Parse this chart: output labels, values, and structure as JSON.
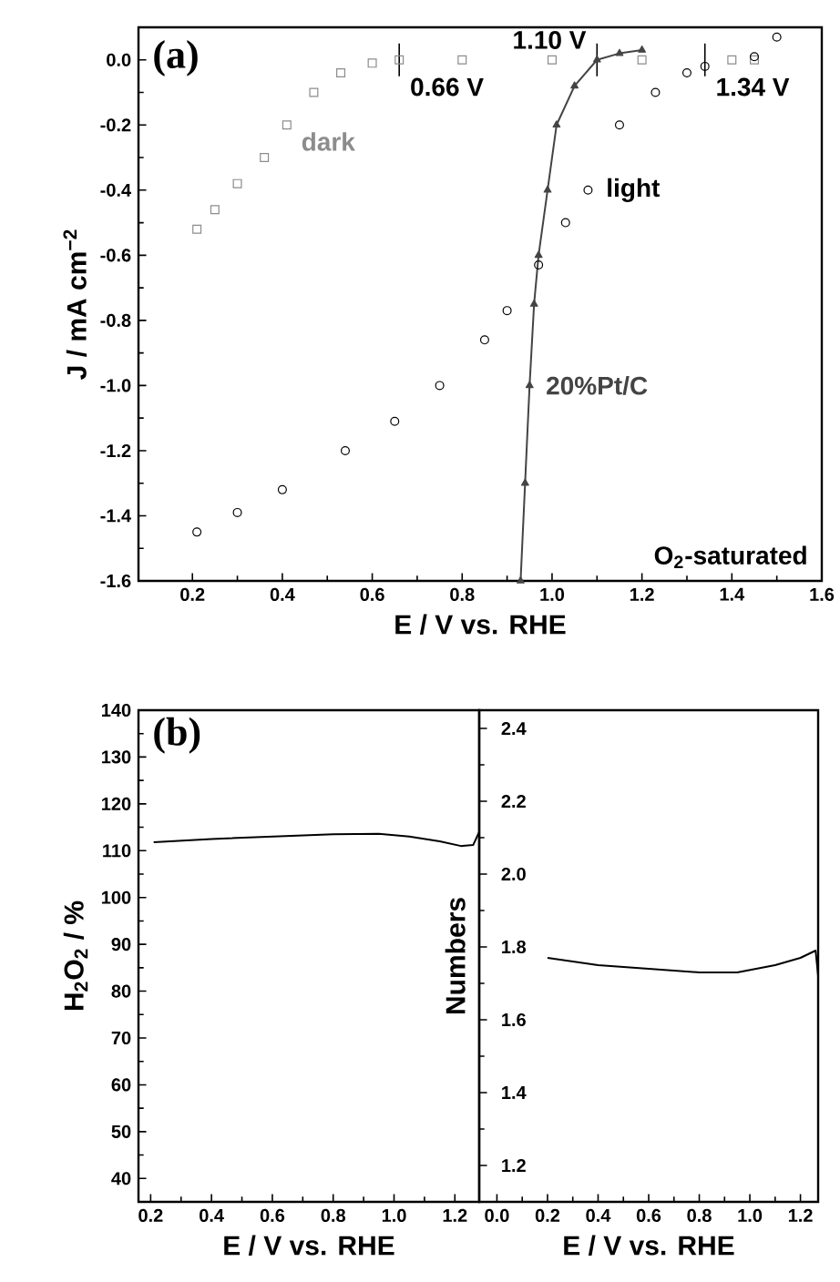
{
  "chart_data": [
    {
      "type": "line",
      "xlabel": "E / V vs. RHE",
      "ylabel": "J / mA cm$^{−2}$",
      "xlim": [
        0.08,
        1.6
      ],
      "ylim": [
        -1.6,
        0.1
      ],
      "xticks": [
        {
          "value": 0.2,
          "label": "0.2"
        },
        {
          "value": 0.4,
          "label": "0.4"
        },
        {
          "value": 0.6,
          "label": "0.6"
        },
        {
          "value": 0.8,
          "label": "0.8"
        },
        {
          "value": 1.0,
          "label": "1.0"
        },
        {
          "value": 1.2,
          "label": "1.2"
        },
        {
          "value": 1.4,
          "label": "1.4"
        },
        {
          "value": 1.6,
          "label": "1.6"
        }
      ],
      "yticks": [
        {
          "value": -1.6,
          "label": "-1.6"
        },
        {
          "value": -1.4,
          "label": "-1.4"
        },
        {
          "value": -1.2,
          "label": "-1.2"
        },
        {
          "value": -1.0,
          "label": "-1.0"
        },
        {
          "value": -0.8,
          "label": "-0.8"
        },
        {
          "value": -0.6,
          "label": "-0.6"
        },
        {
          "value": -0.4,
          "label": "-0.4"
        },
        {
          "value": -0.2,
          "label": "-0.2"
        },
        {
          "value": 0.0,
          "label": "0.0"
        }
      ],
      "series": [
        {
          "name": "dark",
          "type": "scatter",
          "marker": "square",
          "color": "#8c8c8c",
          "x": [
            0.21,
            0.25,
            0.3,
            0.36,
            0.41,
            0.47,
            0.53,
            0.6,
            0.66,
            0.8,
            1.0,
            1.2,
            1.4,
            1.45
          ],
          "values": [
            -0.52,
            -0.46,
            -0.38,
            -0.3,
            -0.2,
            -0.1,
            -0.04,
            -0.01,
            0.0,
            0.0,
            0.0,
            0.0,
            0.0,
            0.0
          ]
        },
        {
          "name": "light",
          "type": "scatter",
          "marker": "circle",
          "color": "#000000",
          "x": [
            0.21,
            0.3,
            0.4,
            0.54,
            0.65,
            0.75,
            0.85,
            0.9,
            0.97,
            1.03,
            1.08,
            1.15,
            1.23,
            1.3,
            1.34,
            1.45,
            1.5
          ],
          "values": [
            -1.45,
            -1.39,
            -1.32,
            -1.2,
            -1.11,
            -1.0,
            -0.86,
            -0.77,
            -0.63,
            -0.5,
            -0.4,
            -0.2,
            -0.1,
            -0.04,
            -0.02,
            0.01,
            0.07
          ]
        },
        {
          "name": "20%Pt/C",
          "type": "line",
          "marker": "triangle",
          "color": "#444444",
          "x": [
            0.93,
            0.94,
            0.95,
            0.96,
            0.97,
            0.99,
            1.01,
            1.05,
            1.1,
            1.15,
            1.2
          ],
          "values": [
            -1.6,
            -1.3,
            -1.0,
            -0.75,
            -0.6,
            -0.4,
            -0.2,
            -0.08,
            0.0,
            0.02,
            0.03
          ]
        }
      ],
      "annotations": [
        "(a)",
        {
          "text": "0.66 V",
          "x": 0.66,
          "y": 0.0
        },
        {
          "text": "1.10 V",
          "x": 1.1,
          "y": 0.0
        },
        {
          "text": "1.34 V",
          "x": 1.34,
          "y": 0.0
        },
        "O$_{2}$-saturated"
      ]
    },
    {
      "type": "line",
      "xlabel": "E / V vs. RHE",
      "ylabel": "H$_{2}$O$_{2}$ / %",
      "xlim": [
        0.16,
        1.28
      ],
      "ylim": [
        35,
        140
      ],
      "xticks": [
        {
          "value": 0.2,
          "label": "0.2"
        },
        {
          "value": 0.4,
          "label": "0.4"
        },
        {
          "value": 0.6,
          "label": "0.6"
        },
        {
          "value": 0.8,
          "label": "0.8"
        },
        {
          "value": 1.0,
          "label": "1.0"
        },
        {
          "value": 1.2,
          "label": "1.2"
        }
      ],
      "yticks": [
        40,
        50,
        60,
        70,
        80,
        90,
        100,
        110,
        120,
        130,
        140
      ],
      "series": [
        {
          "color": "#000000",
          "x": [
            0.21,
            0.4,
            0.6,
            0.8,
            0.95,
            1.05,
            1.15,
            1.22,
            1.26,
            1.28
          ],
          "values": [
            111.8,
            112.5,
            113.0,
            113.5,
            113.6,
            113.0,
            112.0,
            111.0,
            111.2,
            114.0
          ]
        }
      ],
      "annotations": [
        "(b)"
      ]
    },
    {
      "type": "line",
      "xlabel": "E / V vs. RHE",
      "ylabel": "Numbers",
      "xlim": [
        -0.07,
        1.27
      ],
      "ylim": [
        1.1,
        2.45
      ],
      "xticks": [
        {
          "value": 0.0,
          "label": "0.0"
        },
        {
          "value": 0.2,
          "label": "0.2"
        },
        {
          "value": 0.4,
          "label": "0.4"
        },
        {
          "value": 0.6,
          "label": "0.6"
        },
        {
          "value": 0.8,
          "label": "0.8"
        },
        {
          "value": 1.0,
          "label": "1.0"
        },
        {
          "value": 1.2,
          "label": "1.2"
        }
      ],
      "yticks": [
        {
          "value": 1.2,
          "label": "1.2"
        },
        {
          "value": 1.4,
          "label": "1.4"
        },
        {
          "value": 1.6,
          "label": "1.6"
        },
        {
          "value": 1.8,
          "label": "1.8"
        },
        {
          "value": 2.0,
          "label": "2.0"
        },
        {
          "value": 2.2,
          "label": "2.2"
        },
        {
          "value": 2.4,
          "label": "2.4"
        }
      ],
      "series": [
        {
          "color": "#000000",
          "x": [
            0.2,
            0.4,
            0.6,
            0.8,
            0.95,
            1.1,
            1.2,
            1.26,
            1.27
          ],
          "values": [
            1.77,
            1.75,
            1.74,
            1.73,
            1.73,
            1.75,
            1.77,
            1.79,
            1.72
          ]
        }
      ]
    }
  ]
}
